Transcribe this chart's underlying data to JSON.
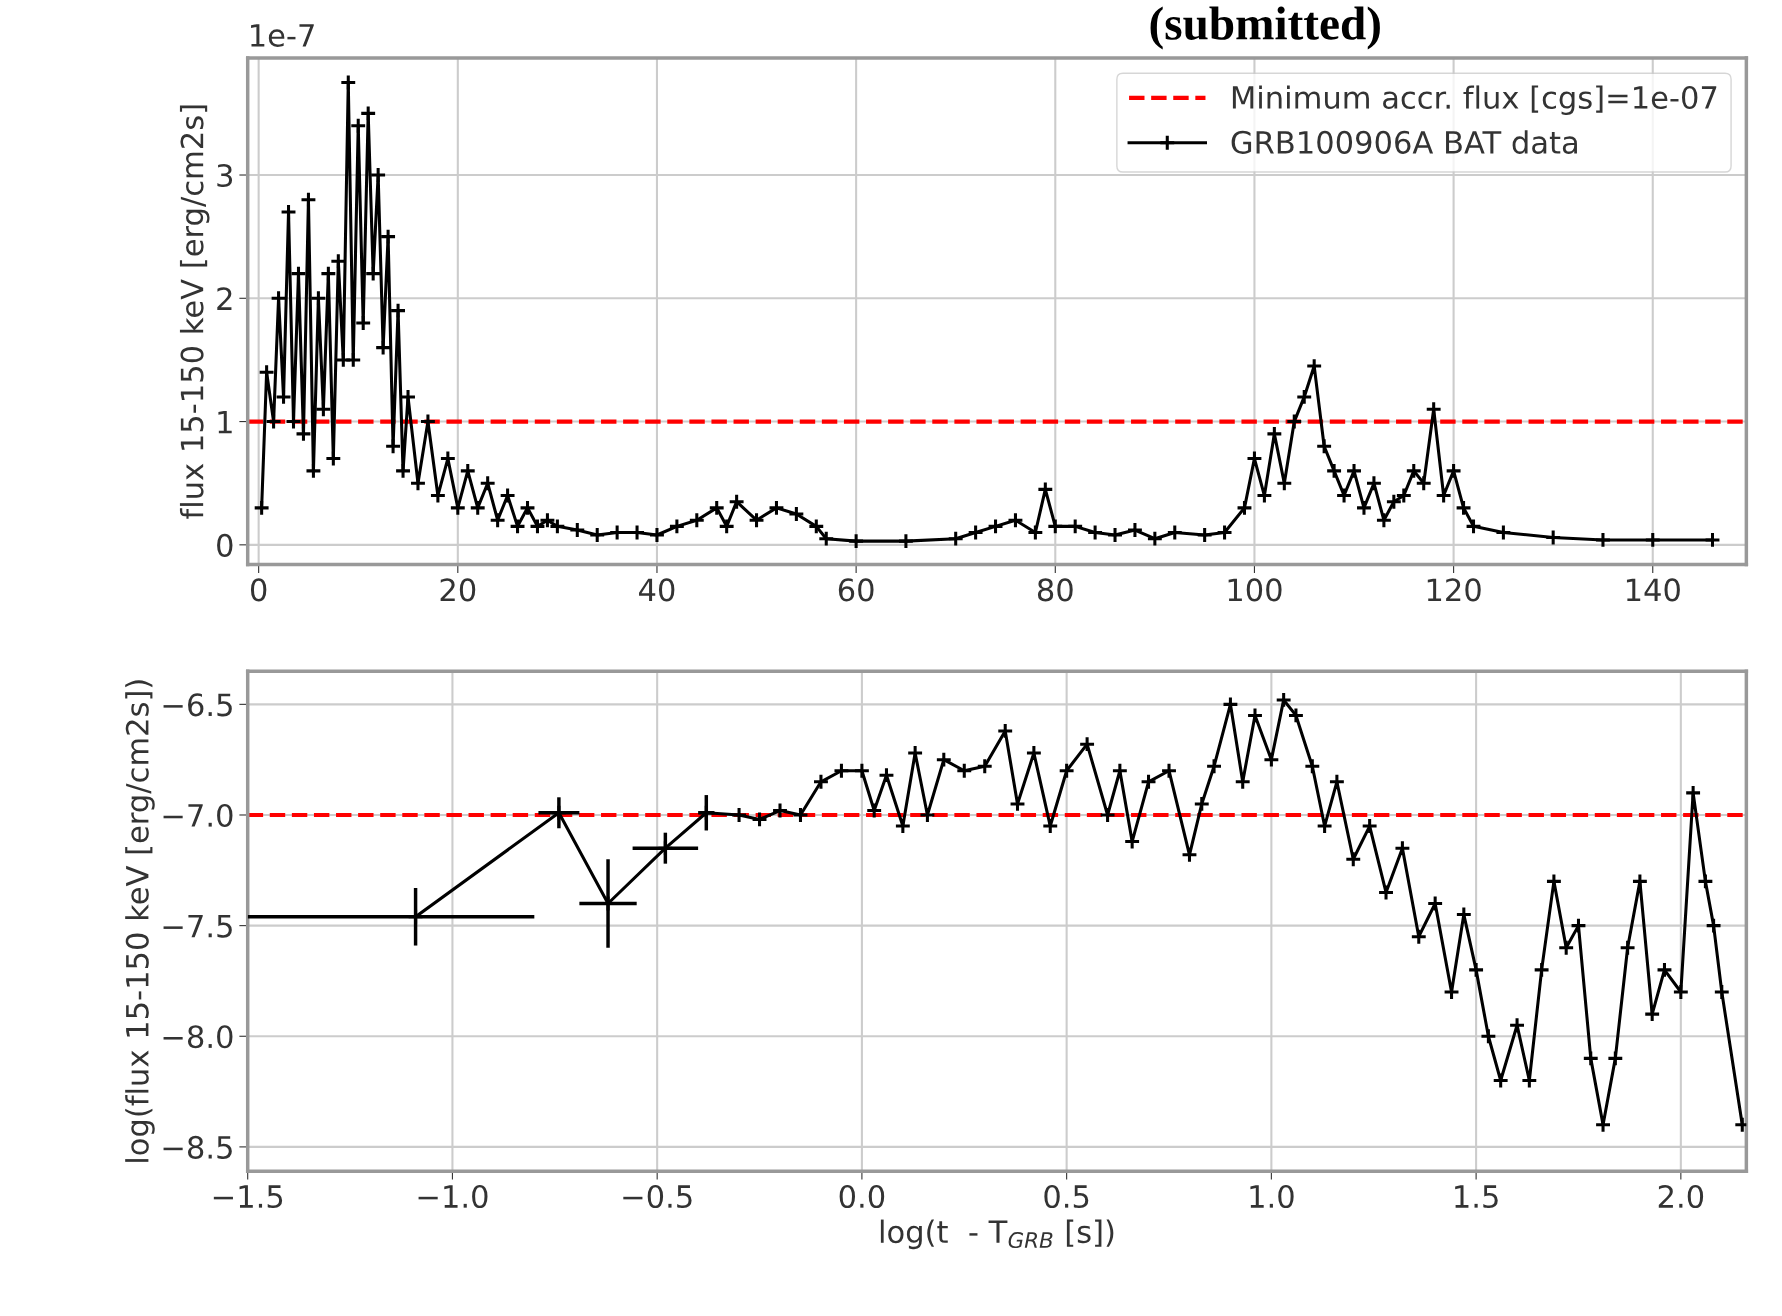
{
  "chart_data": [
    {
      "type": "line",
      "annotations": [
        "(submitted)",
        "1e-7"
      ],
      "ylabel": "flux 15-150 keV [erg/cm2s]",
      "x": [
        0.3,
        0.8,
        1.5,
        2,
        2.5,
        3,
        3.5,
        4,
        4.5,
        5,
        5.5,
        6,
        6.5,
        7,
        7.5,
        8,
        8.5,
        9,
        9.5,
        10,
        10.5,
        11,
        11.5,
        12,
        12.5,
        13,
        13.5,
        14,
        14.5,
        15,
        16,
        17,
        18,
        19,
        20,
        21,
        22,
        23,
        24,
        25,
        26,
        27,
        28,
        29,
        30,
        32,
        34,
        36,
        38,
        40,
        42,
        44,
        46,
        47,
        48,
        50,
        52,
        54,
        56,
        57,
        60,
        65,
        70,
        72,
        74,
        76,
        78,
        79,
        80,
        82,
        84,
        86,
        88,
        90,
        92,
        95,
        97,
        99,
        100,
        101,
        102,
        103,
        104,
        105,
        106,
        107,
        108,
        109,
        110,
        111,
        112,
        113,
        114,
        115,
        116,
        117,
        118,
        119,
        120,
        121,
        122,
        125,
        130,
        135,
        140,
        146
      ],
      "series": [
        {
          "name": "GRB100906A BAT data",
          "color": "#000000",
          "values": [
            0.3,
            1.4,
            1.0,
            2.0,
            1.2,
            2.7,
            1.0,
            2.2,
            0.9,
            2.8,
            0.6,
            2.0,
            1.1,
            2.2,
            0.7,
            2.3,
            1.5,
            3.75,
            1.5,
            3.4,
            1.8,
            3.5,
            2.2,
            3.0,
            1.6,
            2.5,
            0.8,
            1.9,
            0.6,
            1.2,
            0.5,
            1.0,
            0.4,
            0.7,
            0.3,
            0.6,
            0.3,
            0.5,
            0.2,
            0.4,
            0.15,
            0.3,
            0.15,
            0.2,
            0.15,
            0.12,
            0.08,
            0.1,
            0.1,
            0.08,
            0.15,
            0.2,
            0.3,
            0.15,
            0.35,
            0.2,
            0.3,
            0.25,
            0.15,
            0.05,
            0.03,
            0.03,
            0.05,
            0.1,
            0.15,
            0.2,
            0.1,
            0.45,
            0.15,
            0.15,
            0.1,
            0.08,
            0.12,
            0.05,
            0.1,
            0.08,
            0.1,
            0.3,
            0.7,
            0.4,
            0.9,
            0.5,
            1.0,
            1.2,
            1.45,
            0.8,
            0.6,
            0.4,
            0.6,
            0.3,
            0.5,
            0.2,
            0.35,
            0.4,
            0.6,
            0.5,
            1.1,
            0.4,
            0.6,
            0.3,
            0.15,
            0.1,
            0.06,
            0.04,
            0.04,
            0.04
          ]
        }
      ],
      "xlim": [
        -1.1,
        149.4
      ],
      "ylim": [
        -0.16,
        3.95
      ],
      "xticks": [
        0,
        20,
        40,
        60,
        80,
        100,
        120,
        140
      ],
      "yticks": [
        0,
        1,
        2,
        3
      ],
      "ref_lines": [
        {
          "axis": "y",
          "value": 1,
          "label": "Minimum accr. flux [cgs]=1e-07",
          "color": "#ff0000",
          "line_style": "dashed"
        }
      ],
      "grid": true,
      "legend": "top right",
      "marker": "cross",
      "line_style": "solid"
    },
    {
      "type": "line",
      "xlabel": "log(t  - T$_{GRB}$ [s])",
      "ylabel": "log(flux 15-150 keV [erg/cm2s])",
      "x": [
        -1.09,
        -0.74,
        -0.62,
        -0.48,
        -0.38,
        -0.3,
        -0.25,
        -0.2,
        -0.15,
        -0.1,
        -0.05,
        0.0,
        0.03,
        0.06,
        0.1,
        0.13,
        0.16,
        0.2,
        0.25,
        0.3,
        0.35,
        0.38,
        0.42,
        0.46,
        0.5,
        0.55,
        0.6,
        0.63,
        0.66,
        0.7,
        0.75,
        0.8,
        0.83,
        0.86,
        0.9,
        0.93,
        0.96,
        1.0,
        1.03,
        1.06,
        1.1,
        1.13,
        1.16,
        1.2,
        1.24,
        1.28,
        1.32,
        1.36,
        1.4,
        1.44,
        1.47,
        1.5,
        1.53,
        1.56,
        1.6,
        1.63,
        1.66,
        1.69,
        1.72,
        1.75,
        1.78,
        1.81,
        1.84,
        1.87,
        1.9,
        1.93,
        1.96,
        2.0,
        2.03,
        2.06,
        2.08,
        2.1,
        2.15
      ],
      "series": [
        {
          "color": "#000000",
          "values": [
            -7.46,
            -6.99,
            -7.4,
            -7.15,
            -6.99,
            -7.0,
            -7.02,
            -6.98,
            -7.0,
            -6.85,
            -6.8,
            -6.8,
            -6.98,
            -6.82,
            -7.05,
            -6.72,
            -7.0,
            -6.75,
            -6.8,
            -6.78,
            -6.62,
            -6.95,
            -6.72,
            -7.05,
            -6.8,
            -6.68,
            -7.0,
            -6.8,
            -7.12,
            -6.85,
            -6.8,
            -7.18,
            -6.95,
            -6.78,
            -6.5,
            -6.85,
            -6.55,
            -6.75,
            -6.48,
            -6.55,
            -6.78,
            -7.05,
            -6.85,
            -7.2,
            -7.05,
            -7.35,
            -7.15,
            -7.55,
            -7.4,
            -7.8,
            -7.45,
            -7.7,
            -8.0,
            -8.2,
            -7.95,
            -8.2,
            -7.7,
            -7.3,
            -7.6,
            -7.5,
            -8.1,
            -8.4,
            -8.1,
            -7.6,
            -7.3,
            -7.9,
            -7.7,
            -7.8,
            -6.9,
            -7.3,
            -7.5,
            -7.8,
            -8.4
          ],
          "errors": [
            0.13,
            0.07,
            0.2,
            0.07,
            0.08,
            null,
            null,
            null,
            null,
            null,
            null,
            null,
            null,
            null,
            null,
            null,
            null,
            null,
            null,
            null,
            null,
            null,
            null,
            null,
            null,
            null,
            null,
            null,
            null,
            null,
            null,
            null,
            null,
            null,
            null,
            null,
            null,
            null,
            null,
            null,
            null,
            null,
            null,
            null,
            null,
            null,
            null,
            null,
            null,
            null,
            null,
            null,
            null,
            null,
            null,
            null,
            null,
            null,
            null,
            null,
            null,
            null,
            null,
            null,
            null,
            null,
            null,
            null,
            null,
            null,
            null,
            null,
            null
          ],
          "xerrors": [
            [
              -1.5,
              -0.8
            ],
            0.05,
            0.07,
            0.08,
            0.02,
            null,
            null,
            null,
            null,
            null,
            null,
            null,
            null,
            null,
            null,
            null,
            null,
            null,
            null,
            null,
            null,
            null,
            null,
            null,
            null,
            null,
            null,
            null,
            null,
            null,
            null,
            null,
            null,
            null,
            null,
            null,
            null,
            null,
            null,
            null,
            null,
            null,
            null,
            null,
            null,
            null,
            null,
            null,
            null,
            null,
            null,
            null,
            null,
            null,
            null,
            null,
            null,
            null,
            null,
            null,
            null,
            null,
            null,
            null,
            null,
            null,
            null,
            null,
            null,
            null,
            null,
            null,
            null
          ]
        }
      ],
      "xlim": [
        -1.5,
        2.16
      ],
      "ylim": [
        -8.61,
        -6.35
      ],
      "xticks": [
        {
          "value": -1.5,
          "label": "−1.5"
        },
        {
          "value": -1.0,
          "label": "−1.0"
        },
        {
          "value": -0.5,
          "label": "−0.5"
        },
        {
          "value": 0.0,
          "label": "0.0"
        },
        {
          "value": 0.5,
          "label": "0.5"
        },
        {
          "value": 1.0,
          "label": "1.0"
        },
        {
          "value": 1.5,
          "label": "1.5"
        },
        {
          "value": 2.0,
          "label": "2.0"
        }
      ],
      "yticks": [
        {
          "value": -6.5,
          "label": "−6.5"
        },
        {
          "value": -7.0,
          "label": "−7.0"
        },
        {
          "value": -7.5,
          "label": "−7.5"
        },
        {
          "value": -8.0,
          "label": "−8.0"
        },
        {
          "value": -8.5,
          "label": "−8.5"
        }
      ],
      "ref_lines": [
        {
          "axis": "y",
          "value": -7.0,
          "color": "#ff0000",
          "line_style": "dashed"
        }
      ],
      "grid": true,
      "marker": "cross",
      "line_style": "solid"
    }
  ]
}
